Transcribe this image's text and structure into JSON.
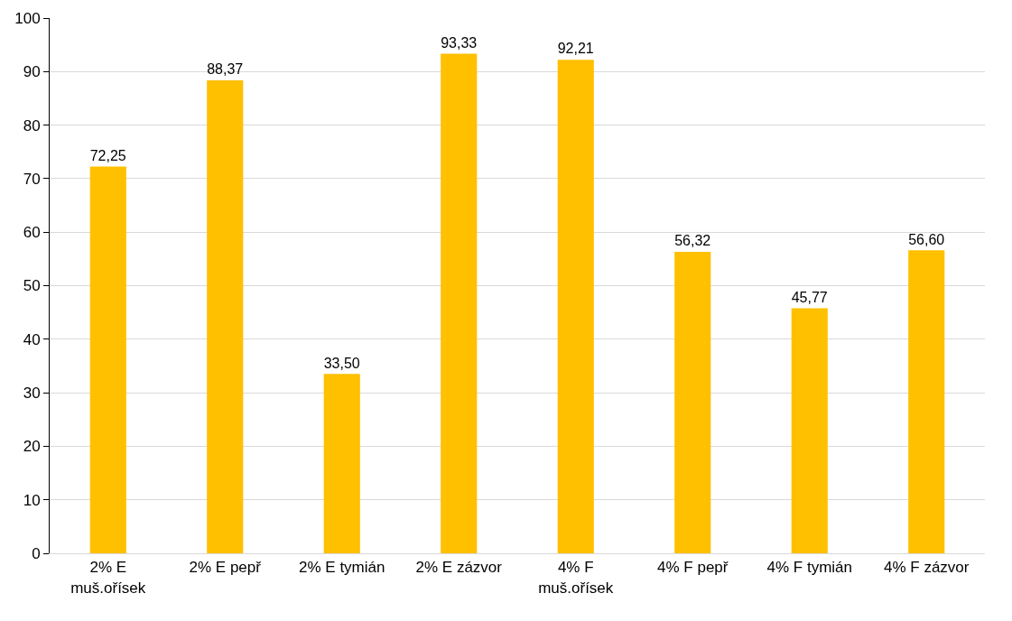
{
  "chart_data": {
    "type": "bar",
    "categories": [
      "2% E muš.ořísek",
      "2% E pepř",
      "2% E tymián",
      "2% E zázvor",
      "4% F muš.ořísek",
      "4% F pepř",
      "4% F tymián",
      "4% F zázvor"
    ],
    "values": [
      72.25,
      88.37,
      33.5,
      93.33,
      92.21,
      56.32,
      45.77,
      56.6
    ],
    "value_labels": [
      "72,25",
      "88,37",
      "33,50",
      "93,33",
      "92,21",
      "56,32",
      "45,77",
      "56,60"
    ],
    "color": "#ffc000",
    "ylim": [
      0,
      100
    ],
    "yticks": [
      0,
      10,
      20,
      30,
      40,
      50,
      60,
      70,
      80,
      90,
      100
    ],
    "grid": "y"
  }
}
